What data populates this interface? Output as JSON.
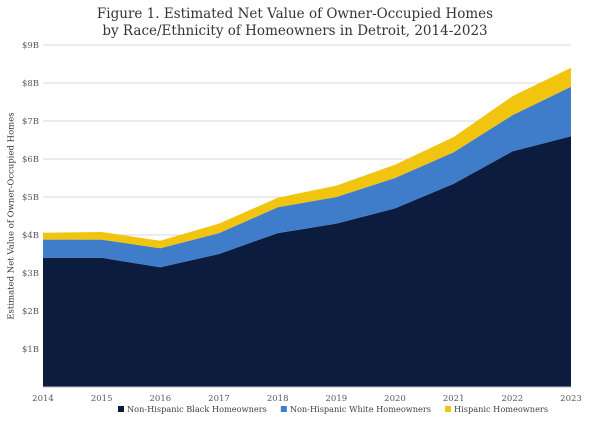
{
  "chart_data": {
    "type": "area",
    "stacked": true,
    "title": [
      "Figure 1. Estimated Net Value of Owner-Occupied Homes",
      "by Race/Ethnicity of Homeowners in Detroit, 2014-2023"
    ],
    "ylabel": "Estimated Net Value of Owner-Occupied Homes",
    "xlabel": "",
    "x": [
      "2014",
      "2015",
      "2016",
      "2017",
      "2018",
      "2019",
      "2020",
      "2021",
      "2022",
      "2023"
    ],
    "ylim": [
      0,
      9
    ],
    "yticks": [
      {
        "value": 1,
        "label": "$1B"
      },
      {
        "value": 2,
        "label": "$2B"
      },
      {
        "value": 3,
        "label": "$3B"
      },
      {
        "value": 4,
        "label": "$4B"
      },
      {
        "value": 5,
        "label": "$5B"
      },
      {
        "value": 6,
        "label": "$6B"
      },
      {
        "value": 7,
        "label": "$7B"
      },
      {
        "value": 8,
        "label": "$8B"
      },
      {
        "value": 9,
        "label": "$9B"
      }
    ],
    "grid": true,
    "legend": "bottom",
    "series": [
      {
        "name": "Non-Hispanic Black Homeowners",
        "color": "#0b1c3f",
        "values": [
          3.4,
          3.4,
          3.15,
          3.5,
          4.05,
          4.3,
          4.7,
          5.35,
          6.2,
          6.6
        ]
      },
      {
        "name": "Non-Hispanic White Homeowners",
        "color": "#3f7dca",
        "values": [
          0.48,
          0.48,
          0.5,
          0.55,
          0.68,
          0.7,
          0.8,
          0.83,
          0.95,
          1.3
        ]
      },
      {
        "name": "Hispanic Homeowners",
        "color": "#f1c40f",
        "values": [
          0.18,
          0.2,
          0.2,
          0.25,
          0.25,
          0.3,
          0.35,
          0.4,
          0.5,
          0.5
        ]
      }
    ]
  }
}
